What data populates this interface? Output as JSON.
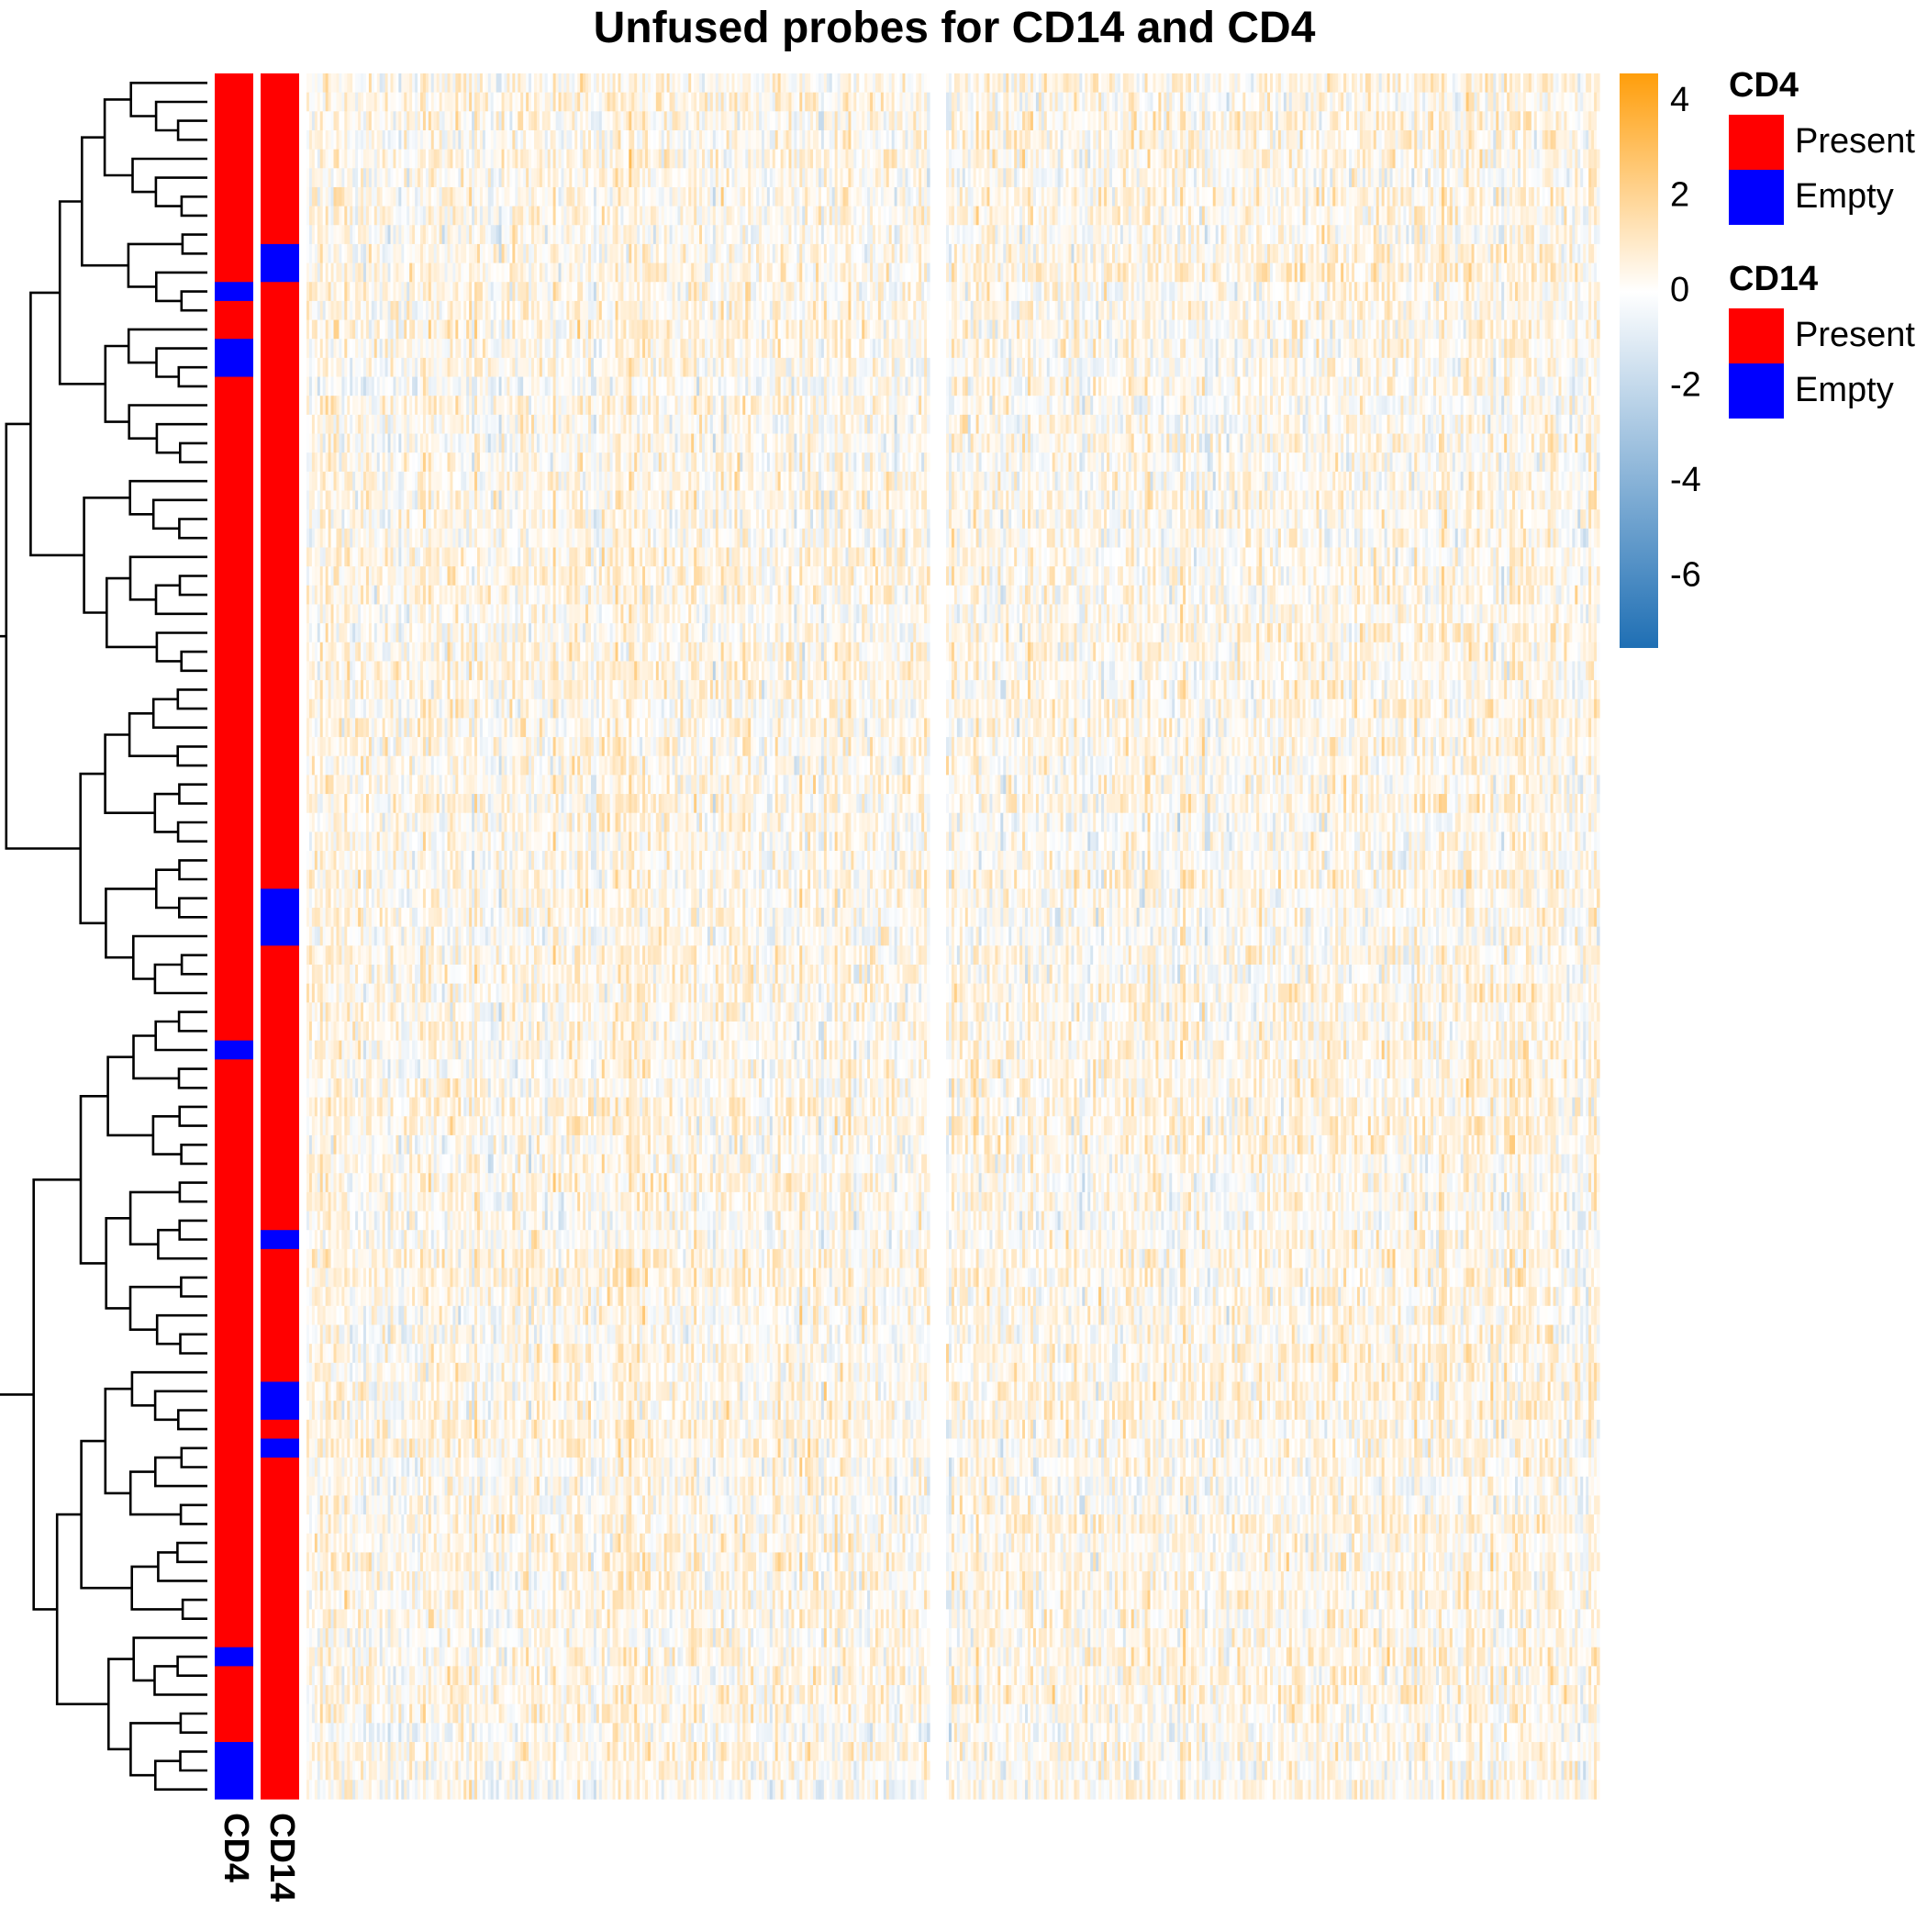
{
  "chart_data": {
    "type": "heatmap",
    "title": "Unfused probes for CD14 and CD4",
    "row_count": 91,
    "column_split_groups": 2,
    "row_dendrogram": true,
    "values_note": "",
    "annotation_tracks": [
      {
        "name": "CD4",
        "levels": [
          "Present",
          "Empty"
        ],
        "colors": {
          "Present": "#ff0000",
          "Empty": "#0000ff"
        },
        "empty_row_ranges": [
          [
            11,
            11
          ],
          [
            14,
            15
          ],
          [
            51,
            51
          ],
          [
            83,
            83
          ],
          [
            88,
            90
          ]
        ]
      },
      {
        "name": "CD14",
        "levels": [
          "Present",
          "Empty"
        ],
        "colors": {
          "Present": "#ff0000",
          "Empty": "#0000ff"
        },
        "empty_row_ranges": [
          [
            9,
            10
          ],
          [
            43,
            45
          ],
          [
            61,
            61
          ],
          [
            69,
            70
          ],
          [
            72,
            72
          ]
        ]
      }
    ],
    "color_scale": {
      "min": -7.5,
      "max": 4.6,
      "stops": [
        {
          "value": -7.5,
          "color": "#1f6fb4"
        },
        {
          "value": 0,
          "color": "#ffffff"
        },
        {
          "value": 4.6,
          "color": "#ff9e0b"
        }
      ],
      "ticks": [
        "4",
        "2",
        "0",
        "-2",
        "-4",
        "-6"
      ],
      "tick_values": [
        4,
        2,
        0,
        -2,
        -4,
        -6
      ]
    },
    "legends": [
      {
        "title": "CD4",
        "items": [
          {
            "label": "Present",
            "color": "#ff0000"
          },
          {
            "label": "Empty",
            "color": "#0000ff"
          }
        ]
      },
      {
        "title": "CD14",
        "items": [
          {
            "label": "Present",
            "color": "#ff0000"
          },
          {
            "label": "Empty",
            "color": "#0000ff"
          }
        ]
      }
    ],
    "track_labels": [
      "CD4",
      "CD14"
    ]
  }
}
